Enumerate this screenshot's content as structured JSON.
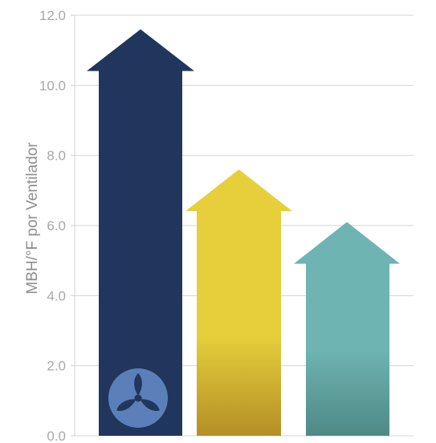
{
  "chart_data": {
    "type": "bar",
    "style": "arrow-bars",
    "ylabel": "MBH/°F por Ventilador",
    "ylim": [
      0,
      12
    ],
    "yticks": [
      "0.0",
      "2.0",
      "4.0",
      "6.0",
      "8.0",
      "10.0",
      "12.0"
    ],
    "grid": true,
    "legend": "none",
    "series": [
      {
        "values": [
          11.6,
          7.6,
          6.1
        ],
        "colors": [
          "#21365c",
          "#e6cf3b",
          "#6db4b2"
        ]
      }
    ]
  },
  "icon": {
    "name": "fan-icon",
    "color": "#5b7fb8"
  }
}
